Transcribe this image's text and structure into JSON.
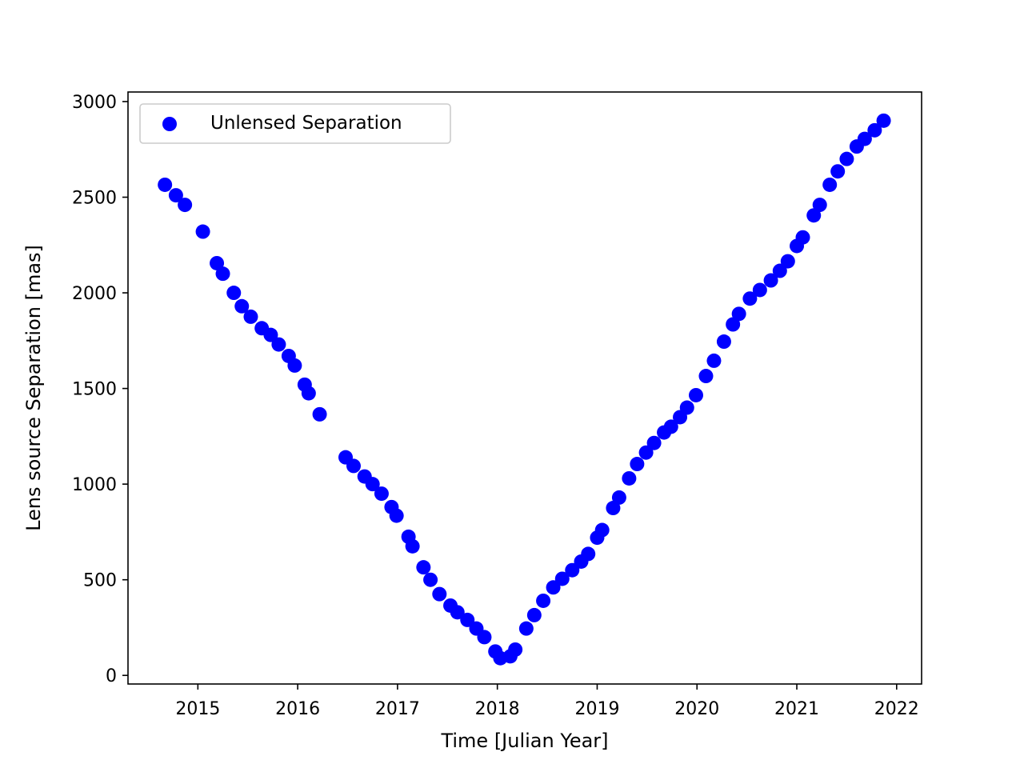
{
  "chart_data": {
    "type": "scatter",
    "title": "",
    "xlabel": "Time [Julian Year]",
    "ylabel": "Lens source Separation [mas]",
    "xlim": [
      2014.3,
      2022.25
    ],
    "ylim": [
      -45,
      3050
    ],
    "xticks": [
      2015,
      2016,
      2017,
      2018,
      2019,
      2020,
      2021,
      2022
    ],
    "yticks": [
      0,
      500,
      1000,
      1500,
      2000,
      2500,
      3000
    ],
    "grid": false,
    "legend": "top-left",
    "series": [
      {
        "name": "Unlensed Separation",
        "color": "#0000ff",
        "marker": "circle",
        "x": [
          2014.67,
          2014.78,
          2014.87,
          2015.05,
          2015.19,
          2015.25,
          2015.36,
          2015.44,
          2015.53,
          2015.64,
          2015.73,
          2015.81,
          2015.91,
          2015.97,
          2016.07,
          2016.11,
          2016.22,
          2016.48,
          2016.56,
          2016.67,
          2016.75,
          2016.84,
          2016.94,
          2016.99,
          2017.11,
          2017.15,
          2017.26,
          2017.33,
          2017.42,
          2017.53,
          2017.6,
          2017.7,
          2017.79,
          2017.87,
          2017.98,
          2018.03,
          2018.13,
          2018.18,
          2018.29,
          2018.37,
          2018.46,
          2018.56,
          2018.65,
          2018.75,
          2018.84,
          2018.91,
          2019.0,
          2019.05,
          2019.16,
          2019.22,
          2019.32,
          2019.4,
          2019.49,
          2019.57,
          2019.67,
          2019.74,
          2019.83,
          2019.9,
          2019.99,
          2020.09,
          2020.17,
          2020.27,
          2020.36,
          2020.42,
          2020.53,
          2020.63,
          2020.74,
          2020.83,
          2020.91,
          2021.0,
          2021.06,
          2021.17,
          2021.23,
          2021.33,
          2021.41,
          2021.5,
          2021.6,
          2021.68,
          2021.78,
          2021.87
        ],
        "y": [
          2565,
          2510,
          2460,
          2320,
          2155,
          2100,
          2000,
          1930,
          1875,
          1815,
          1780,
          1730,
          1670,
          1620,
          1520,
          1475,
          1365,
          1140,
          1095,
          1040,
          1000,
          950,
          880,
          835,
          725,
          675,
          565,
          500,
          425,
          365,
          330,
          290,
          245,
          200,
          125,
          90,
          100,
          135,
          245,
          315,
          390,
          460,
          505,
          550,
          595,
          635,
          720,
          760,
          875,
          930,
          1030,
          1105,
          1165,
          1215,
          1270,
          1300,
          1350,
          1400,
          1465,
          1565,
          1645,
          1745,
          1835,
          1890,
          1970,
          2015,
          2065,
          2115,
          2165,
          2245,
          2290,
          2405,
          2460,
          2565,
          2635,
          2700,
          2765,
          2805,
          2850,
          2900
        ]
      }
    ]
  }
}
